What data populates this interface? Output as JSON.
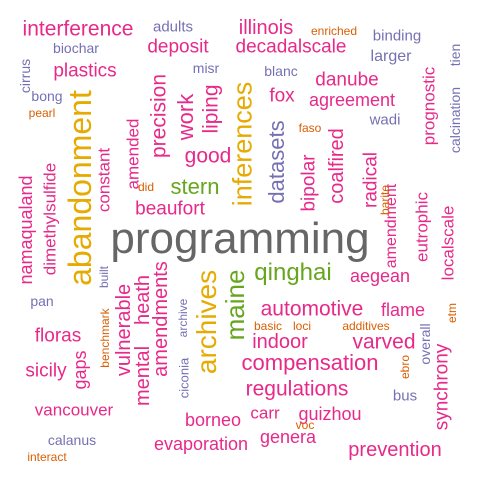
{
  "colors": {
    "pink": "#e7298a",
    "purple": "#7570b3",
    "orange": "#d95f02",
    "green": "#66a61e",
    "gold": "#e6ab02",
    "gray": "#666666"
  },
  "words": [
    "programming",
    "abandonment",
    "archives",
    "inferences",
    "qinghai",
    "stern",
    "automotive",
    "compensation",
    "regulations",
    "maine",
    "datasets",
    "varved",
    "interference",
    "illinois",
    "deposit",
    "decadalscale",
    "plastics",
    "precision",
    "work",
    "liping",
    "good",
    "fox",
    "agreement",
    "danube",
    "amendments",
    "vulnerable",
    "heath",
    "mental",
    "coalfired",
    "radical",
    "bipolar",
    "prognostic",
    "amendment",
    "eutrophic",
    "localscale",
    "aegean",
    "namaqualand",
    "dimethylsulfide",
    "constant",
    "amended",
    "beaufort",
    "indoor",
    "flame",
    "floras",
    "sicily",
    "gaps",
    "vancouver",
    "borneo",
    "carr",
    "guizhou",
    "genera",
    "evaporation",
    "prevention",
    "synchrony",
    "overall",
    "adults",
    "biochar",
    "cirrus",
    "bong",
    "misr",
    "blanc",
    "larger",
    "binding",
    "tien",
    "wadi",
    "calcination",
    "pan",
    "calanus",
    "bus",
    "built",
    "benchmark",
    "ciconia",
    "archive",
    "pearl",
    "enriched",
    "faso",
    "did",
    "barite",
    "basic",
    "loci",
    "additives",
    "etm",
    "ebro",
    "voc",
    "interact"
  ]
}
